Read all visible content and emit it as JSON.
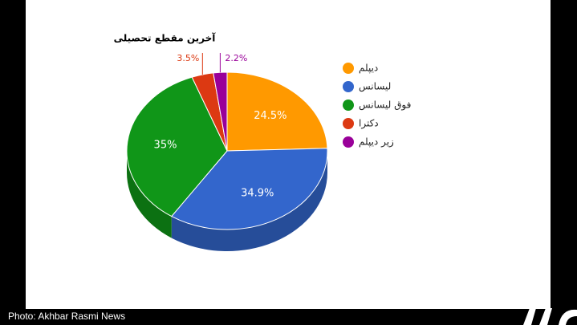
{
  "chart_data": {
    "type": "pie",
    "title": "آخرین مقطع تحصیلی",
    "categories": [
      "ديپلم",
      "ليسانس",
      "فوق ليسانس",
      "دکترا",
      "زير ديپلم"
    ],
    "values": [
      24.5,
      34.9,
      35,
      3.5,
      2.2
    ],
    "value_labels": [
      "24.5%",
      "34.9%",
      "35%",
      "3.5%",
      "2.2%"
    ],
    "colors": [
      "#ff9900",
      "#3366cc",
      "#109618",
      "#dc3912",
      "#990099"
    ],
    "legend": "right"
  },
  "caption": "Photo: Akhbar Rasmi News"
}
